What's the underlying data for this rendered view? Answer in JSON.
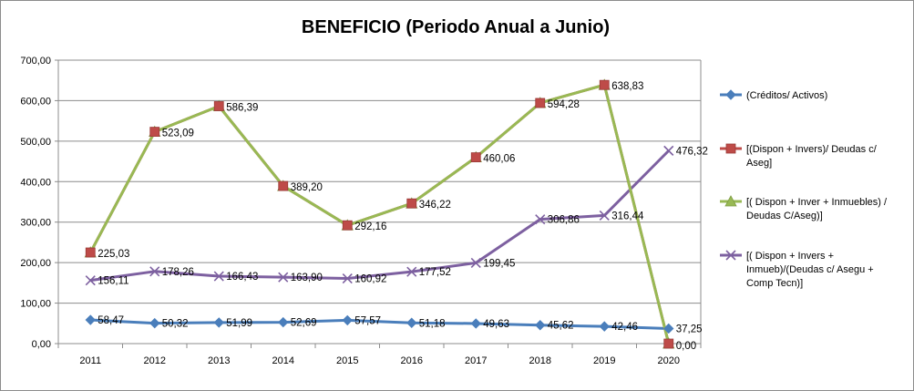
{
  "chart_data": {
    "type": "line",
    "title": "BENEFICIO (Periodo Anual a Junio)",
    "xlabel": "",
    "ylabel": "",
    "categories": [
      "2011",
      "2012",
      "2013",
      "2014",
      "2015",
      "2016",
      "2017",
      "2018",
      "2019",
      "2020"
    ],
    "ylim": [
      0,
      700
    ],
    "yticks": [
      "0,00",
      "100,00",
      "200,00",
      "300,00",
      "400,00",
      "500,00",
      "600,00",
      "700,00"
    ],
    "grid": "horizontal",
    "legend_position": "right",
    "series": [
      {
        "name": "(Créditos/ Activos)",
        "legend_lines": [
          "(Créditos/ Activos)"
        ],
        "color": "#4a7ebb",
        "marker": "diamond",
        "values": [
          58.47,
          50.32,
          51.99,
          52.69,
          57.57,
          51.18,
          49.63,
          45.62,
          42.46,
          37.25
        ],
        "labels": [
          "58,47",
          "50,32",
          "51,99",
          "52,69",
          "57,57",
          "51,18",
          "49,63",
          "45,62",
          "42,46",
          "37,25"
        ]
      },
      {
        "name": "[(Dispon + Invers)/ Deudas c/ Aseg]",
        "legend_lines": [
          "[(Dispon + Invers)/ Deudas c/",
          "Aseg]"
        ],
        "color": "#be4b48",
        "marker": "square",
        "values": [
          225.03,
          523.09,
          586.39,
          389.2,
          292.16,
          346.22,
          460.06,
          594.28,
          638.83,
          0.0
        ],
        "labels": []
      },
      {
        "name": "[( Dispon + Inver + Inmuebles) / Deudas C/Aseg)]",
        "legend_lines": [
          "[( Dispon + Inver + Inmuebles) /",
          "Deudas C/Aseg)]"
        ],
        "color": "#98b954",
        "marker": "triangle",
        "values": [
          225.03,
          523.09,
          586.39,
          389.2,
          292.16,
          346.22,
          460.06,
          594.28,
          638.83,
          0.0
        ],
        "labels": [
          "225,03",
          "523,09",
          "586,39",
          "389,20",
          "292,16",
          "346,22",
          "460,06",
          "594,28",
          "638,83",
          "0,00"
        ]
      },
      {
        "name": "[( Dispon + Invers + Inmueb)/(Deudas c/ Asegu + Comp Tecn)]",
        "legend_lines": [
          "[( Dispon + Invers +",
          "Inmueb)/(Deudas c/ Asegu +",
          "Comp Tecn)]"
        ],
        "color": "#7d60a0",
        "marker": "x",
        "values": [
          156.11,
          178.26,
          166.43,
          163.9,
          160.92,
          177.52,
          199.45,
          306.86,
          316.44,
          476.32
        ],
        "labels": [
          "156,11",
          "178,26",
          "166,43",
          "163,90",
          "160,92",
          "177,52",
          "199,45",
          "306,86",
          "316,44",
          "476,32"
        ]
      }
    ]
  }
}
